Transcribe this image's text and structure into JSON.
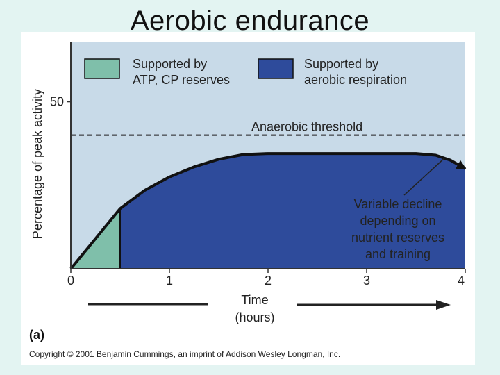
{
  "slide": {
    "title": "Aerobic endurance"
  },
  "panel_label": "(a)",
  "copyright": "Copyright © 2001 Benjamin Cummings, an imprint of Addison Wesley Longman, Inc.",
  "colors": {
    "plot_background": "#c8dae8",
    "atp_cp_fill": "#7fbfaa",
    "aerobic_fill": "#2e4b9b",
    "curve": "#111111"
  },
  "chart_data": {
    "type": "area",
    "title": "",
    "xlabel_line1": "Time",
    "xlabel_line2": "(hours)",
    "ylabel": "Percentage of peak activity",
    "xlim": [
      0,
      4
    ],
    "ylim": [
      0,
      68
    ],
    "x_ticks": [
      "0",
      "1",
      "2",
      "3",
      "4"
    ],
    "y_ticks": [
      {
        "value": 50,
        "label": "50"
      }
    ],
    "grid": false,
    "legend_position": "top",
    "legend": [
      {
        "series": "atp_cp",
        "line1": "Supported by",
        "line2": "ATP, CP reserves"
      },
      {
        "series": "aerobic",
        "line1": "Supported by",
        "line2": "aerobic respiration"
      }
    ],
    "threshold": {
      "label": "Anaerobic threshold",
      "y": 40
    },
    "series": [
      {
        "key": "atp_cp",
        "x": [
          0,
          0.5,
          0.5
        ],
        "y": [
          0,
          18,
          0
        ]
      },
      {
        "key": "aerobic",
        "x": [
          0.5,
          0.75,
          1.0,
          1.25,
          1.5,
          1.75,
          2.0,
          2.5,
          3.0,
          3.5,
          3.7,
          3.85,
          4.0
        ],
        "y": [
          18,
          23.5,
          27.5,
          30.5,
          32.8,
          34.2,
          34.5,
          34.5,
          34.5,
          34.5,
          34,
          32.5,
          30
        ]
      }
    ],
    "time_arrow": true,
    "annotation": {
      "lines": [
        "Variable decline",
        "depending on",
        "nutrient reserves",
        "and training"
      ],
      "points_to_x": 3.85,
      "points_to_y": 32
    }
  }
}
